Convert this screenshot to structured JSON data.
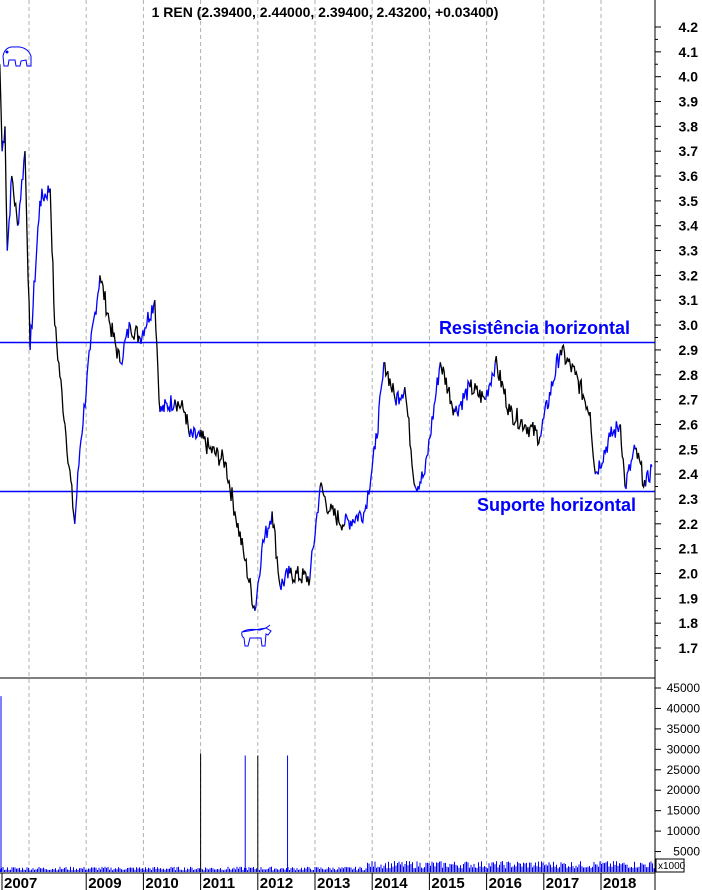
{
  "chart_data": {
    "type": "line",
    "title": "1 REN (2.39400, 2.44000, 2.39400, 2.43200, +0.03400)",
    "colors": {
      "price": "#0000ff",
      "price_down": "#000000",
      "lines": "#0000ff",
      "volume": "#0000ff"
    },
    "price_axis": {
      "ylim": [
        1.6,
        4.3
      ],
      "ticks": [
        1.7,
        1.8,
        1.9,
        2.0,
        2.1,
        2.2,
        2.3,
        2.4,
        2.5,
        2.6,
        2.7,
        2.8,
        2.9,
        3.0,
        3.1,
        3.2,
        3.3,
        3.4,
        3.5,
        3.6,
        3.7,
        3.8,
        3.9,
        4.0,
        4.1,
        4.2
      ],
      "position": "right"
    },
    "x_axis": {
      "xlim": [
        2007.49,
        2018.95
      ],
      "tick_labels": [
        "2007",
        "2009",
        "2010",
        "2011",
        "2012",
        "2013",
        "2014",
        "2015",
        "2016",
        "2017",
        "2018"
      ],
      "gridlines": [
        2008,
        2009,
        2010,
        2011,
        2012,
        2013,
        2014,
        2015,
        2016,
        2017,
        2018
      ],
      "grid": "vertical dashed"
    },
    "price_series": [
      [
        2007.49,
        4.05
      ],
      [
        2007.53,
        3.7
      ],
      [
        2007.58,
        3.8
      ],
      [
        2007.62,
        3.3
      ],
      [
        2007.7,
        3.6
      ],
      [
        2007.8,
        3.4
      ],
      [
        2007.93,
        3.7
      ],
      [
        2008.02,
        2.9
      ],
      [
        2008.19,
        3.5
      ],
      [
        2008.37,
        3.55
      ],
      [
        2008.45,
        3.0
      ],
      [
        2008.63,
        2.6
      ],
      [
        2008.8,
        2.2
      ],
      [
        2008.89,
        2.5
      ],
      [
        2009.07,
        2.9
      ],
      [
        2009.24,
        3.2
      ],
      [
        2009.42,
        3.0
      ],
      [
        2009.59,
        2.85
      ],
      [
        2009.77,
        3.0
      ],
      [
        2009.94,
        2.95
      ],
      [
        2010.2,
        3.1
      ],
      [
        2010.29,
        2.65
      ],
      [
        2010.55,
        2.7
      ],
      [
        2010.73,
        2.65
      ],
      [
        2010.81,
        2.55
      ],
      [
        2010.99,
        2.55
      ],
      [
        2011.16,
        2.5
      ],
      [
        2011.43,
        2.45
      ],
      [
        2011.6,
        2.25
      ],
      [
        2011.78,
        2.05
      ],
      [
        2011.95,
        1.85
      ],
      [
        2012.07,
        2.1
      ],
      [
        2012.25,
        2.25
      ],
      [
        2012.39,
        1.95
      ],
      [
        2012.56,
        2.0
      ],
      [
        2012.91,
        1.98
      ],
      [
        2013.09,
        2.35
      ],
      [
        2013.26,
        2.25
      ],
      [
        2013.52,
        2.2
      ],
      [
        2013.87,
        2.25
      ],
      [
        2014.05,
        2.5
      ],
      [
        2014.22,
        2.85
      ],
      [
        2014.4,
        2.7
      ],
      [
        2014.57,
        2.75
      ],
      [
        2014.75,
        2.35
      ],
      [
        2014.92,
        2.4
      ],
      [
        2015.19,
        2.85
      ],
      [
        2015.45,
        2.65
      ],
      [
        2015.71,
        2.75
      ],
      [
        2015.97,
        2.7
      ],
      [
        2016.15,
        2.85
      ],
      [
        2016.41,
        2.65
      ],
      [
        2016.67,
        2.6
      ],
      [
        2016.93,
        2.55
      ],
      [
        2017.29,
        2.9
      ],
      [
        2017.55,
        2.8
      ],
      [
        2017.81,
        2.65
      ],
      [
        2017.9,
        2.4
      ],
      [
        2018.16,
        2.55
      ],
      [
        2018.34,
        2.6
      ],
      [
        2018.42,
        2.35
      ],
      [
        2018.6,
        2.5
      ],
      [
        2018.78,
        2.35
      ],
      [
        2018.89,
        2.43
      ]
    ],
    "horizontal_lines": [
      {
        "label": "Resistência horizontal",
        "value": 2.93
      },
      {
        "label": "Suporte horizontal",
        "value": 2.33
      }
    ],
    "volume_axis": {
      "ylim": [
        0,
        47000
      ],
      "ticks": [
        5000,
        10000,
        15000,
        20000,
        25000,
        30000,
        35000,
        40000,
        45000
      ],
      "unit_label": "x1000"
    },
    "volume_spikes": [
      [
        2007.5,
        43000
      ],
      [
        2011.0,
        29000
      ],
      [
        2011.78,
        28500
      ],
      [
        2012.0,
        28500
      ],
      [
        2012.52,
        28500
      ]
    ],
    "icons": [
      "bear-icon",
      "bull-icon"
    ]
  }
}
